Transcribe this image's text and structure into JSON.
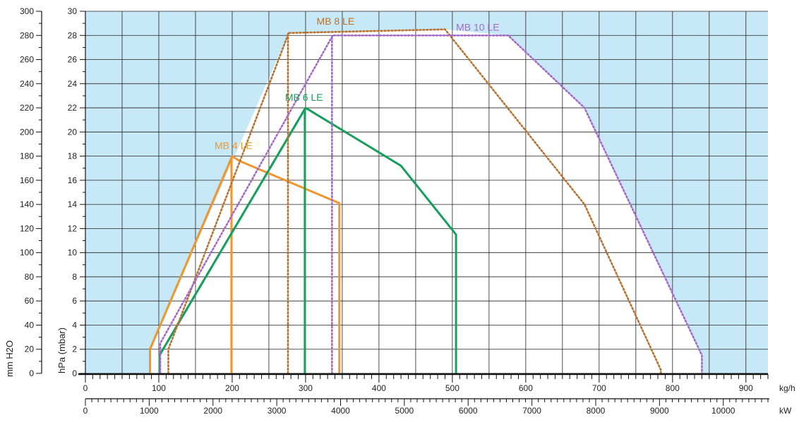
{
  "chart_data": {
    "type": "line",
    "axis_labels": {
      "mmh2o": "mm H2O",
      "hpa": "hPa (mbar)",
      "kgh_unit": "kg/h",
      "kw_unit": "kW"
    },
    "y_hpa": {
      "range": [
        0,
        30
      ],
      "ticks": [
        "0",
        "2",
        "4",
        "6",
        "8",
        "10",
        "12",
        "14",
        "16",
        "18",
        "20",
        "22",
        "24",
        "26",
        "28",
        "30"
      ]
    },
    "y_mmh2o": {
      "range": [
        0,
        300
      ],
      "ticks": [
        "0",
        "20",
        "40",
        "60",
        "80",
        "100",
        "120",
        "140",
        "160",
        "180",
        "200",
        "220",
        "240",
        "260",
        "280",
        "300"
      ]
    },
    "x_kgh": {
      "range": [
        0,
        930
      ],
      "ticks": [
        "0",
        "100",
        "200",
        "300",
        "400",
        "500",
        "600",
        "700",
        "800",
        "900"
      ]
    },
    "x_kw": {
      "range": [
        0,
        10700
      ],
      "ticks": [
        "0",
        "1000",
        "2000",
        "3000",
        "4000",
        "5000",
        "6000",
        "7000",
        "8000",
        "9000",
        "10000"
      ]
    },
    "grid": true,
    "background_color": "#c7e9f7",
    "series": [
      {
        "name": "MB 4 LE",
        "color": "#f0962f",
        "boundary": [
          [
            88,
            0
          ],
          [
            88,
            2
          ],
          [
            200,
            18
          ],
          [
            210,
            17.6
          ],
          [
            346,
            14.1
          ],
          [
            346,
            0
          ]
        ],
        "dashed_segment": [
          [
            88,
            2
          ],
          [
            200,
            18
          ]
        ],
        "vertical": [
          [
            199,
            0
          ],
          [
            199,
            17.8
          ]
        ]
      },
      {
        "name": "MB 6 LE",
        "color": "#17a05d",
        "boundary": [
          [
            101,
            0
          ],
          [
            101,
            1.5
          ],
          [
            300,
            22
          ],
          [
            430,
            17.2
          ],
          [
            505,
            11.5
          ],
          [
            505,
            0
          ]
        ],
        "dashed_segment": [
          [
            101,
            1.5
          ],
          [
            300,
            22
          ]
        ],
        "vertical": [
          [
            299,
            0
          ],
          [
            299,
            22
          ]
        ]
      },
      {
        "name": "MB 8 LE",
        "color": "#b8722f",
        "boundary": [
          [
            113,
            0
          ],
          [
            113,
            2
          ],
          [
            277,
            28.2
          ],
          [
            490,
            28.5
          ],
          [
            680,
            14
          ],
          [
            784,
            0.3
          ],
          [
            784,
            0
          ]
        ],
        "vertical": [
          [
            276,
            0
          ],
          [
            276,
            28.2
          ]
        ]
      },
      {
        "name": "MB 10 LE",
        "color": "#a569c8",
        "boundary": [
          [
            102,
            0
          ],
          [
            102,
            2.5
          ],
          [
            337,
            28
          ],
          [
            576,
            28
          ],
          [
            680,
            22
          ],
          [
            840,
            1.5
          ],
          [
            840,
            0
          ]
        ],
        "vertical": [
          [
            336,
            0
          ],
          [
            336,
            28
          ]
        ]
      }
    ]
  }
}
